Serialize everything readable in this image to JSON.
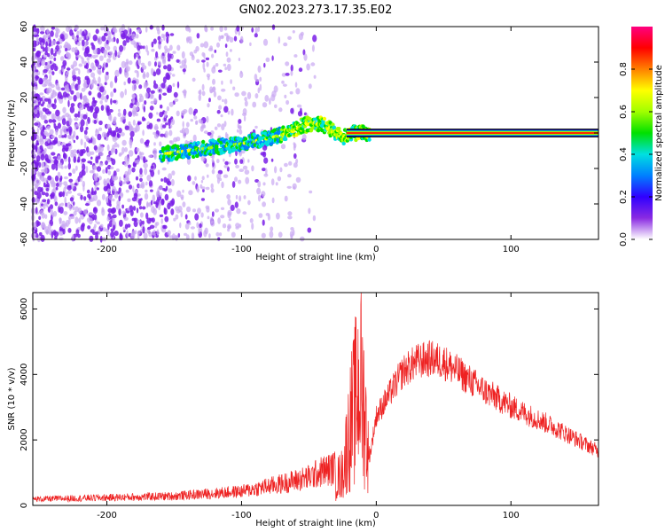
{
  "title": "GN02.2023.273.17.35.E02",
  "colors": {
    "series": "#ee2222",
    "axis": "#000000",
    "background": "#ffffff"
  },
  "chart_data": [
    {
      "type": "heatmap",
      "name": "spectrogram",
      "xlabel": "Height of straight line (km)",
      "ylabel": "Frequency (Hz)",
      "xlim": [
        -255,
        165
      ],
      "ylim": [
        -60,
        60
      ],
      "xticks": [
        -200,
        -100,
        0,
        100
      ],
      "yticks": [
        -60,
        -40,
        -20,
        0,
        20,
        40,
        60
      ],
      "colorbar": {
        "label": "Normalized spectral amplitude",
        "range": [
          0,
          1
        ],
        "ticks": [
          "0.0",
          "0.2",
          "0.4",
          "0.6",
          "0.8"
        ],
        "tick_values": [
          0,
          0.2,
          0.4,
          0.6,
          0.8
        ],
        "colormap": [
          "#ffffff",
          "#8a2be2",
          "#3000ff",
          "#0080ff",
          "#00e0e0",
          "#00e000",
          "#a0ff00",
          "#ffff00",
          "#ff8000",
          "#ff0000",
          "#ff0080"
        ]
      },
      "ridge": {
        "x": [
          -160,
          -140,
          -120,
          -100,
          -80,
          -65,
          -55,
          -45,
          -35,
          -25,
          -20,
          -10,
          0,
          165
        ],
        "frequency": [
          -12,
          -10,
          -8,
          -6,
          -3,
          0,
          4,
          6,
          3,
          -3,
          0,
          0,
          0,
          0
        ]
      },
      "noise_extent_x": [
        -255,
        -70
      ],
      "carrier_frequency": 0
    },
    {
      "type": "line",
      "name": "snr",
      "xlabel": "Height of straight line (km)",
      "ylabel": "SNR (10 * v/v)",
      "xlim": [
        -255,
        165
      ],
      "ylim": [
        0,
        6500
      ],
      "xticks": [
        -200,
        -100,
        0,
        100
      ],
      "yticks": [
        0,
        2000,
        4000,
        6000
      ],
      "envelope": {
        "x": [
          -255,
          -200,
          -150,
          -100,
          -70,
          -50,
          -40,
          -30,
          -25,
          -20,
          -15,
          -12,
          -8,
          -5,
          0,
          10,
          20,
          30,
          40,
          50,
          60,
          80,
          100,
          130,
          165
        ],
        "y": [
          200,
          250,
          300,
          450,
          700,
          900,
          1100,
          1200,
          1500,
          3500,
          5000,
          6100,
          4000,
          1500,
          2800,
          3500,
          4200,
          4500,
          4600,
          4500,
          4200,
          3600,
          3100,
          2500,
          1700
        ]
      }
    }
  ]
}
